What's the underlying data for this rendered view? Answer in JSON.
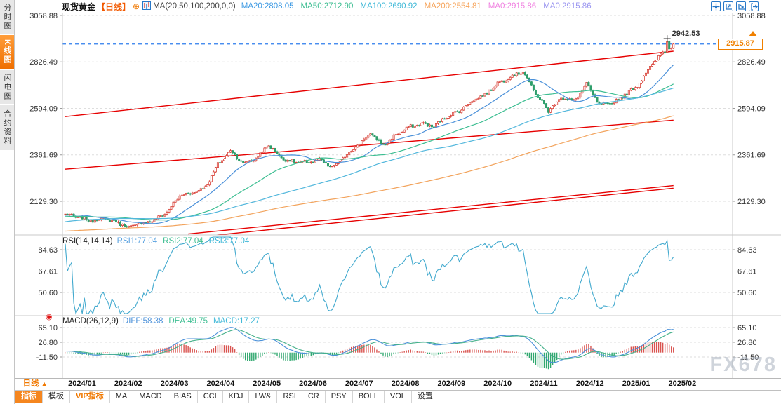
{
  "sidebar": {
    "items": [
      {
        "label": "分时图",
        "active": false
      },
      {
        "label": "K线图",
        "active": true
      },
      {
        "label": "闪电图",
        "active": false
      },
      {
        "label": "合约资料",
        "active": false
      }
    ]
  },
  "header": {
    "symbol": "现货黄金",
    "period": "【日线】",
    "add_icon": "⊕",
    "ma_settings": "MA(20,50,100,200,0,0)",
    "ma_values": [
      {
        "label": "MA20:2808.05",
        "color": "#3E9AE3"
      },
      {
        "label": "MA50:2712.90",
        "color": "#3DBE92"
      },
      {
        "label": "MA100:2690.92",
        "color": "#41B9D8"
      },
      {
        "label": "MA200:2554.81",
        "color": "#F6A45B"
      },
      {
        "label": "MA0:2915.86",
        "color": "#F080E0"
      },
      {
        "label": "MA0:2915.86",
        "color": "#9B96F0"
      }
    ],
    "toolbar_icons": [
      "crosshair-icon",
      "zoom-y-axis-icon",
      "zoom-x-axis-icon",
      "pan-right-icon"
    ]
  },
  "bottom": {
    "period_selector": "日线",
    "period_arrow": "▲",
    "watermark": "FX678",
    "tabs": [
      {
        "label": "指标",
        "style": "active"
      },
      {
        "label": "模板",
        "style": "normal"
      },
      {
        "label": "VIP指标",
        "style": "vip"
      },
      {
        "label": "MA",
        "style": "normal"
      },
      {
        "label": "MACD",
        "style": "normal"
      },
      {
        "label": "BIAS",
        "style": "normal"
      },
      {
        "label": "CCI",
        "style": "normal"
      },
      {
        "label": "KDJ",
        "style": "normal"
      },
      {
        "label": "LW&",
        "style": "normal"
      },
      {
        "label": "RSI",
        "style": "normal"
      },
      {
        "label": "CR",
        "style": "normal"
      },
      {
        "label": "PSY",
        "style": "normal"
      },
      {
        "label": "BOLL",
        "style": "normal"
      },
      {
        "label": "VOL",
        "style": "normal"
      },
      {
        "label": "设置",
        "style": "normal"
      }
    ]
  },
  "chart_data": {
    "type": "candlestick",
    "title": "现货黄金 日线",
    "x_labels": [
      "2024/01",
      "2024/02",
      "2024/03",
      "2024/04",
      "2024/05",
      "2024/06",
      "2024/07",
      "2024/08",
      "2024/09",
      "2024/10",
      "2024/11",
      "2024/12",
      "2025/01",
      "2025/02"
    ],
    "price_axis": {
      "ticks": [
        3058.88,
        2826.49,
        2594.09,
        2361.69,
        2129.3
      ],
      "current_price": 2915.87,
      "current_price_label": "2915.87",
      "session_high": 2942.53,
      "session_high_label": "2942.53",
      "high_day": 284
    },
    "num_days": 288,
    "anchor_step": 6,
    "anchor_closes": [
      2064,
      2042,
      2030,
      2048,
      2032,
      1995,
      2014,
      2036,
      2083,
      2158,
      2166,
      2195,
      2318,
      2388,
      2315,
      2338,
      2412,
      2352,
      2328,
      2318,
      2332,
      2302,
      2362,
      2408,
      2462,
      2408,
      2468,
      2502,
      2512,
      2498,
      2558,
      2588,
      2632,
      2655,
      2718,
      2758,
      2784,
      2662,
      2578,
      2652,
      2636,
      2716,
      2604,
      2616,
      2668,
      2712,
      2798,
      2868,
      2916
    ],
    "prehistory": {
      "step": 10,
      "closes": [
        1956,
        1940,
        1922,
        1916,
        1931,
        1947,
        1960,
        1941,
        1920,
        1908,
        1936,
        1974,
        1996,
        2012,
        2034,
        2042,
        2056,
        2041,
        2052,
        2060,
        2064
      ]
    },
    "ma_periods": [
      20,
      50,
      100,
      200
    ],
    "trendlines": [
      {
        "d1": 0,
        "p1": 2553,
        "d2": 287,
        "p2": 2880
      },
      {
        "d1": 0,
        "p1": 2290,
        "d2": 287,
        "p2": 2535
      },
      {
        "d1": 58,
        "p1": 1966,
        "d2": 287,
        "p2": 2208
      },
      {
        "d1": 62,
        "p1": 1950,
        "d2": 287,
        "p2": 2195
      }
    ],
    "rsi": {
      "title": "RSI(14,14,14)",
      "period": 14,
      "values": [
        {
          "label": "RSI1:77.04",
          "color": "#5AA2E0"
        },
        {
          "label": "RSI2:77.04",
          "color": "#3DBE92"
        },
        {
          "label": "RSI3:77.04",
          "color": "#41B9D8"
        }
      ],
      "ticks": [
        84.63,
        67.61,
        50.6
      ]
    },
    "macd": {
      "title": "MACD(26,12,9)",
      "fast": 12,
      "slow": 26,
      "signal": 9,
      "values": [
        {
          "label": "DIFF:58.38",
          "color": "#4A90D9"
        },
        {
          "label": "DEA:49.75",
          "color": "#3DBE92"
        },
        {
          "label": "MACD:17.27",
          "color": "#41B9D8"
        }
      ],
      "ticks": [
        65.1,
        26.8,
        -11.5
      ]
    },
    "colors": {
      "up": "#D9453C",
      "down": "#2E9E6B",
      "ma20": "#4A90D9",
      "ma50": "#3DBE92",
      "ma100": "#52B7DC",
      "ma200": "#F2A35C",
      "trend": "#E60000",
      "current_line": "#2F7DED",
      "rsi_line": "#41A9CE",
      "diff": "#4A90D9",
      "dea": "#44B08A",
      "hist_up": "#D9534F",
      "hist_down": "#2FA86E",
      "high_label": "#E8537A",
      "grid": "#dedede"
    }
  }
}
